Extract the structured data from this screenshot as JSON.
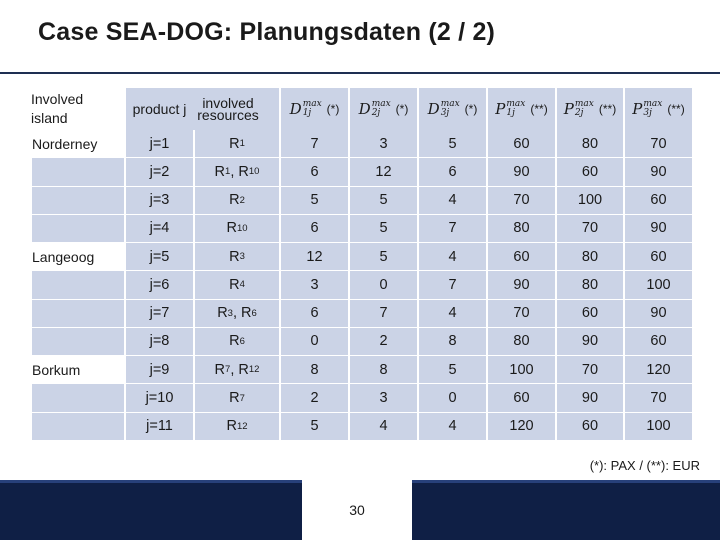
{
  "slide": {
    "title": "Case SEA-DOG: Planungsdaten (2 / 2)",
    "note": "(*): PAX / (**): EUR",
    "page_number": "30"
  },
  "table": {
    "headers": {
      "island_line1": "Involved",
      "island_line2": "island",
      "product": "product j",
      "resources_line1": "involved",
      "resources_line2": "resources",
      "d1": {
        "base": "D",
        "sup": "max",
        "sub": "1j",
        "unit": "(*)"
      },
      "d2": {
        "base": "D",
        "sup": "max",
        "sub": "2j",
        "unit": "(*)"
      },
      "d3": {
        "base": "D",
        "sup": "max",
        "sub": "3j",
        "unit": "(*)"
      },
      "p1": {
        "base": "P",
        "sup": "max",
        "sub": "1j",
        "unit": "(**)"
      },
      "p2": {
        "base": "P",
        "sup": "max",
        "sub": "2j",
        "unit": "(**)"
      },
      "p3": {
        "base": "P",
        "sup": "max",
        "sub": "3j",
        "unit": "(**)"
      }
    },
    "rows": [
      {
        "island": "Norderney",
        "product": "j=1",
        "res": "R",
        "res_sub": "1",
        "res_extra": "",
        "res_extra_sub": "",
        "d1": "7",
        "d2": "3",
        "d3": "5",
        "p1": "60",
        "p2": "80",
        "p3": "70"
      },
      {
        "island": "",
        "product": "j=2",
        "res": "R",
        "res_sub": "1",
        "res_extra": ", R",
        "res_extra_sub": "10",
        "d1": "6",
        "d2": "12",
        "d3": "6",
        "p1": "90",
        "p2": "60",
        "p3": "90"
      },
      {
        "island": "",
        "product": "j=3",
        "res": "R",
        "res_sub": "2",
        "res_extra": "",
        "res_extra_sub": "",
        "d1": "5",
        "d2": "5",
        "d3": "4",
        "p1": "70",
        "p2": "100",
        "p3": "60"
      },
      {
        "island": "",
        "product": "j=4",
        "res": "R",
        "res_sub": "10",
        "res_extra": "",
        "res_extra_sub": "",
        "d1": "6",
        "d2": "5",
        "d3": "7",
        "p1": "80",
        "p2": "70",
        "p3": "90"
      },
      {
        "island": "Langeoog",
        "product": "j=5",
        "res": "R",
        "res_sub": "3",
        "res_extra": "",
        "res_extra_sub": "",
        "d1": "12",
        "d2": "5",
        "d3": "4",
        "p1": "60",
        "p2": "80",
        "p3": "60"
      },
      {
        "island": "",
        "product": "j=6",
        "res": "R",
        "res_sub": "4",
        "res_extra": "",
        "res_extra_sub": "",
        "d1": "3",
        "d2": "0",
        "d3": "7",
        "p1": "90",
        "p2": "80",
        "p3": "100"
      },
      {
        "island": "",
        "product": "j=7",
        "res": "R",
        "res_sub": "3",
        "res_extra": ", R",
        "res_extra_sub": "6",
        "d1": "6",
        "d2": "7",
        "d3": "4",
        "p1": "70",
        "p2": "60",
        "p3": "90"
      },
      {
        "island": "",
        "product": "j=8",
        "res": "R",
        "res_sub": "6",
        "res_extra": "",
        "res_extra_sub": "",
        "d1": "0",
        "d2": "2",
        "d3": "8",
        "p1": "80",
        "p2": "90",
        "p3": "60"
      },
      {
        "island": "Borkum",
        "product": "j=9",
        "res": "R",
        "res_sub": "7",
        "res_extra": ", R",
        "res_extra_sub": "12",
        "d1": "8",
        "d2": "8",
        "d3": "5",
        "p1": "100",
        "p2": "70",
        "p3": "120"
      },
      {
        "island": "",
        "product": "j=10",
        "res": "R",
        "res_sub": "7",
        "res_extra": "",
        "res_extra_sub": "",
        "d1": "2",
        "d2": "3",
        "d3": "0",
        "p1": "60",
        "p2": "90",
        "p3": "70"
      },
      {
        "island": "",
        "product": "j=11",
        "res": "R",
        "res_sub": "12",
        "res_extra": "",
        "res_extra_sub": "",
        "d1": "5",
        "d2": "4",
        "d3": "4",
        "p1": "120",
        "p2": "60",
        "p3": "100"
      }
    ]
  }
}
